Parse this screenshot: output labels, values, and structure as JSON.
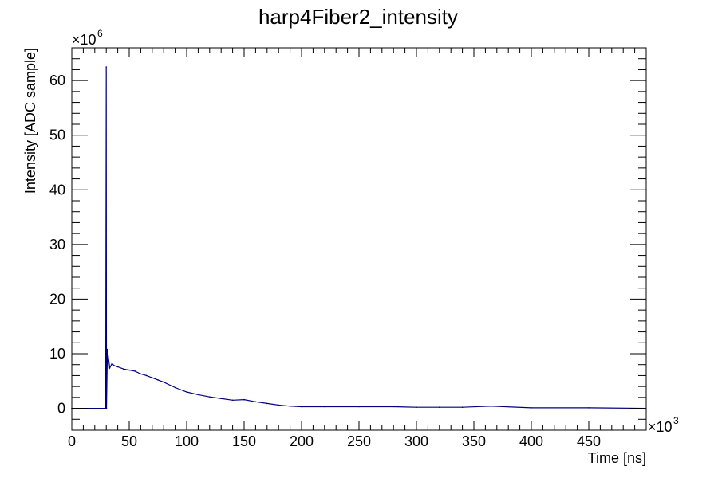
{
  "chart_data": {
    "type": "line",
    "title": "harp4Fiber2_intensity",
    "xlabel": "Time [ns]",
    "ylabel": "Intensity [ADC sample]",
    "x_multiplier": {
      "base": "×10",
      "exp": "3"
    },
    "y_multiplier": {
      "base": "×10",
      "exp": "6"
    },
    "xlim": [
      0,
      500
    ],
    "ylim": [
      -4,
      66
    ],
    "xticks": [
      0,
      50,
      100,
      150,
      200,
      250,
      300,
      350,
      400,
      450
    ],
    "xtick_labels": [
      "0",
      "50",
      "100",
      "150",
      "200",
      "250",
      "300",
      "350",
      "400",
      "450"
    ],
    "yticks": [
      0,
      10,
      20,
      30,
      40,
      50,
      60
    ],
    "ytick_labels": [
      "0",
      "10",
      "20",
      "30",
      "40",
      "50",
      "60"
    ],
    "grid": false,
    "legend": "none",
    "series": [
      {
        "color": "#00007f",
        "x": [
          0,
          29.5,
          30.0,
          30.2,
          31.0,
          33.0,
          35.0,
          37.0,
          40.0,
          45.0,
          50.0,
          55.0,
          60.0,
          65.0,
          70.0,
          75.0,
          80.0,
          90.0,
          100.0,
          110.0,
          120.0,
          130.0,
          140.0,
          150.0,
          160.0,
          170.0,
          180.0,
          190.0,
          200.0,
          220.0,
          250.0,
          280.0,
          300.0,
          320.0,
          340.0,
          365.0,
          400.0,
          450.0,
          499.0
        ],
        "y": [
          0,
          0,
          62.5,
          0,
          10.8,
          7.4,
          8.2,
          7.8,
          7.6,
          7.2,
          7.0,
          6.8,
          6.3,
          6.0,
          5.6,
          5.2,
          4.8,
          3.8,
          3.0,
          2.5,
          2.1,
          1.8,
          1.5,
          1.6,
          1.2,
          0.9,
          0.6,
          0.4,
          0.3,
          0.3,
          0.3,
          0.3,
          0.2,
          0.2,
          0.2,
          0.4,
          0.1,
          0.1,
          0.0
        ]
      }
    ]
  }
}
